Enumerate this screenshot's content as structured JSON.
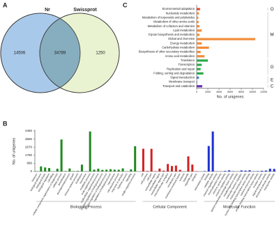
{
  "chart_data": [
    {
      "type": "venn",
      "label": "A",
      "sets": [
        {
          "name": "Nr",
          "color": "#a9c9ea",
          "only": 14506
        },
        {
          "name": "Swissprot",
          "color": "#e9f3d2",
          "only": 1250
        }
      ],
      "overlap": 34789,
      "overlap_color": "#87aebe"
    },
    {
      "type": "barh",
      "label": "C",
      "categories": [
        "Environmental adaptation",
        "Nucleotide metabolism",
        "Metabolism of terpenoids and polyketides",
        "Metabolism of other amino acids",
        "Metabolism of cofactors and vitamins",
        "Lipid metabolism",
        "Glycan biosynthesis and metabolism",
        "Global and Overview",
        "Energy metabolism",
        "Carbohydrate metabolism",
        "Biosynthesis of other secondary metabolites",
        "Amino acid metabolism",
        "Translation",
        "Transcription",
        "Replication and repair",
        "Folding, sorting and degradation",
        "Signal transduction",
        "Membrane transport",
        "Transport and catabolism"
      ],
      "values": [
        600,
        400,
        300,
        350,
        500,
        900,
        500,
        10500,
        900,
        2200,
        700,
        1400,
        2000,
        900,
        700,
        1200,
        400,
        100,
        1000
      ],
      "colors": [
        "#e8462a",
        "#f08c3a",
        "#f08c3a",
        "#f08c3a",
        "#f08c3a",
        "#f08c3a",
        "#f08c3a",
        "#f08c3a",
        "#f08c3a",
        "#f08c3a",
        "#f08c3a",
        "#f08c3a",
        "#2aa84a",
        "#2aa84a",
        "#2aa84a",
        "#2aa84a",
        "#3a7fd0",
        "#3a7fd0",
        "#6a2fb0"
      ],
      "groups": [
        {
          "label": "O",
          "color": "#e8462a"
        },
        {
          "label": "M",
          "color": "#f08c3a"
        },
        {
          "label": "G",
          "color": "#2aa84a"
        },
        {
          "label": "E",
          "color": "#3a7fd0"
        },
        {
          "label": "C",
          "color": "#6a2fb0"
        }
      ],
      "xlim": [
        0,
        12000
      ],
      "xticks": [
        0,
        2000,
        4000,
        6000,
        8000,
        10000,
        12000
      ],
      "xlabel": "No. of unigenes"
    },
    {
      "type": "bar",
      "label": "B",
      "ylabel": "No. of unigenes",
      "ylim": [
        0,
        4450
      ],
      "yticks": [
        0,
        890,
        1780,
        2670,
        3560,
        4450
      ],
      "series": [
        {
          "name": "Biological Process",
          "color": "#1f8a1f",
          "categories": [
            "behavior",
            "biological adhesion",
            "biological phase",
            "biological regulation",
            "cell killing",
            "cellular component organization or biogenesis",
            "cellular process",
            "detoxification",
            "developmental process",
            "growth",
            "immune system process",
            "localization",
            "locomotion",
            "metabolic process",
            "multi-organism process",
            "multicellular organismal process",
            "negative regulation of biological process",
            "positive regulation of biological process",
            "regulation of biological process",
            "reproduction",
            "reproductive process",
            "response to stimulus",
            "rhythmic process",
            "signaling",
            "single-organism process"
          ],
          "values": [
            30,
            560,
            440,
            380,
            10,
            300,
            3520,
            50,
            330,
            40,
            60,
            750,
            20,
            4400,
            200,
            300,
            170,
            200,
            250,
            200,
            190,
            340,
            15,
            230,
            2780
          ]
        },
        {
          "name": "Cellular Component",
          "color": "#d42020",
          "categories": [
            "cell",
            "cell junction",
            "cell part",
            "extracellular matrix",
            "extracellular region",
            "extracellular region part",
            "macromolecular complex",
            "membrane",
            "membrane part",
            "membrane-enclosed lumen",
            "nucleoid",
            "organelle",
            "organelle part",
            "synapse"
          ],
          "values": [
            2500,
            60,
            2490,
            40,
            320,
            90,
            820,
            600,
            650,
            180,
            10,
            1660,
            760,
            30
          ]
        },
        {
          "name": "Molecular Function",
          "color": "#1a2fd0",
          "categories": [
            "antioxidant activity",
            "binding",
            "catalytic activity",
            "channel regulator activity",
            "chemoattractant activity",
            "electron carrier activity",
            "enzyme regulator activity",
            "guanyl-nucleotide exchange factor activity",
            "metallochaperone activity",
            "molecular function regulator",
            "molecular transducer activity",
            "nucleic acid binding transcription factor activity",
            "nutrient reservoir activity",
            "protein binding transcription factor activity",
            "receptor activity",
            "signal transducer activity",
            "structural molecule activity",
            "transporter activity"
          ],
          "values": [
            40,
            2800,
            4400,
            10,
            5,
            60,
            120,
            30,
            5,
            110,
            90,
            130,
            20,
            40,
            70,
            100,
            300,
            280
          ]
        }
      ]
    }
  ]
}
